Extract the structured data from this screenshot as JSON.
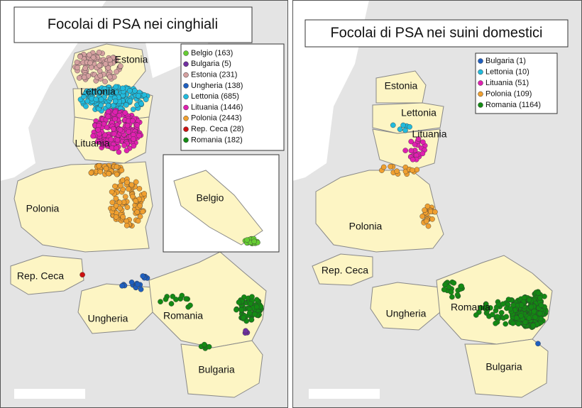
{
  "panels": [
    {
      "title": "Focolai di PSA nei cinghiali",
      "legend": [
        {
          "label": "Belgio (163)",
          "color": "#66cc33"
        },
        {
          "label": "Bulgaria (5)",
          "color": "#7030a0"
        },
        {
          "label": "Estonia (231)",
          "color": "#d4a0a0"
        },
        {
          "label": "Ungheria (138)",
          "color": "#1f5fbf"
        },
        {
          "label": "Lettonia (685)",
          "color": "#22bbdd"
        },
        {
          "label": "Lituania (1446)",
          "color": "#e020b0"
        },
        {
          "label": "Polonia (2443)",
          "color": "#f0a030"
        },
        {
          "label": "Rep. Ceca (28)",
          "color": "#cc1010"
        },
        {
          "label": "Romania (182)",
          "color": "#138a13"
        }
      ],
      "countries": [
        "Estonia",
        "Lettonia",
        "Lituania",
        "Polonia",
        "Rep. Ceca",
        "Ungheria",
        "Romania",
        "Bulgaria",
        "Belgio"
      ]
    },
    {
      "title": "Focolai di PSA nei suini domestici",
      "legend": [
        {
          "label": "Bulgaria (1)",
          "color": "#1f5fbf"
        },
        {
          "label": "Lettonia (10)",
          "color": "#22bbdd"
        },
        {
          "label": "Lituania (51)",
          "color": "#e020b0"
        },
        {
          "label": "Polonia (109)",
          "color": "#f0a030"
        },
        {
          "label": "Romania (1164)",
          "color": "#138a13"
        }
      ],
      "countries": [
        "Estonia",
        "Lettonia",
        "Lituania",
        "Polonia",
        "Rep. Ceca",
        "Ungheria",
        "Romania",
        "Bulgaria"
      ]
    }
  ]
}
